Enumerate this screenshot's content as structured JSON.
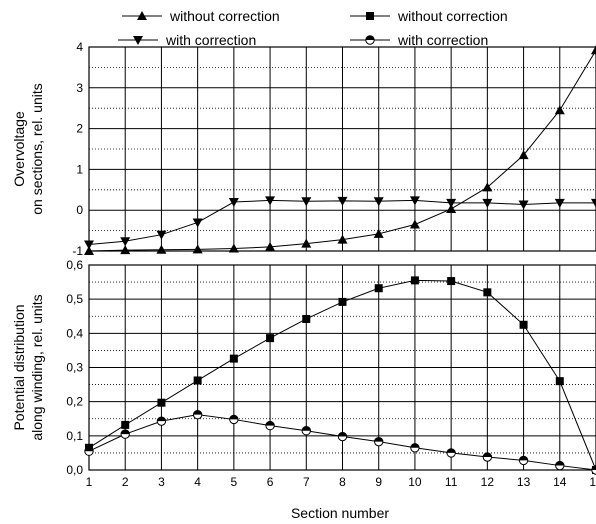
{
  "chart_data": [
    {
      "type": "line",
      "ylabel": [
        "Overvoltage",
        "on sections, rel. units"
      ],
      "x": [
        1,
        2,
        3,
        4,
        5,
        6,
        7,
        8,
        9,
        10,
        11,
        12,
        13,
        14,
        15
      ],
      "ylim": [
        -1,
        4
      ],
      "yticks": [
        -1,
        0,
        1,
        2,
        3,
        4
      ],
      "yticks_labels": [
        "-1",
        "0",
        "1",
        "2",
        "3",
        "4"
      ],
      "series": [
        {
          "name": "without correction",
          "marker": "triangle-up",
          "values": [
            -1.0,
            -0.98,
            -0.97,
            -0.96,
            -0.94,
            -0.9,
            -0.82,
            -0.72,
            -0.58,
            -0.35,
            0.03,
            0.56,
            1.35,
            2.45,
            3.92
          ]
        },
        {
          "name": "with correction",
          "marker": "triangle-down",
          "values": [
            -0.84,
            -0.76,
            -0.6,
            -0.3,
            0.2,
            0.24,
            0.22,
            0.23,
            0.22,
            0.24,
            0.18,
            0.18,
            0.14,
            0.18,
            0.18
          ]
        }
      ]
    },
    {
      "type": "line",
      "ylabel": [
        "Potential distribution",
        "along winding, rel. units"
      ],
      "xlabel": "Section number",
      "x": [
        1,
        2,
        3,
        4,
        5,
        6,
        7,
        8,
        9,
        10,
        11,
        12,
        13,
        14,
        15
      ],
      "xticks_labels": [
        "1",
        "2",
        "3",
        "4",
        "5",
        "6",
        "7",
        "8",
        "9",
        "10",
        "11",
        "12",
        "13",
        "14",
        "15"
      ],
      "ylim": [
        0,
        0.6
      ],
      "yticks": [
        0,
        0.1,
        0.2,
        0.3,
        0.4,
        0.5,
        0.6
      ],
      "yticks_labels": [
        "0,0",
        "0,1",
        "0,2",
        "0,3",
        "0,4",
        "0,5",
        "0,6"
      ],
      "series": [
        {
          "name": "without correction",
          "marker": "square",
          "values": [
            0.065,
            0.132,
            0.197,
            0.262,
            0.326,
            0.386,
            0.442,
            0.492,
            0.532,
            0.555,
            0.553,
            0.52,
            0.425,
            0.26,
            0.0
          ]
        },
        {
          "name": "with correction",
          "marker": "circle-half",
          "values": [
            0.055,
            0.105,
            0.143,
            0.162,
            0.148,
            0.13,
            0.115,
            0.098,
            0.083,
            0.065,
            0.05,
            0.038,
            0.028,
            0.013,
            0.0
          ]
        }
      ]
    }
  ]
}
